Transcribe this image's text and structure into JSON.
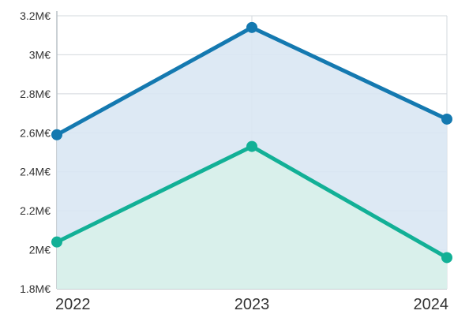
{
  "chart_data": {
    "type": "area",
    "title": "",
    "xlabel": "",
    "ylabel": "",
    "categories": [
      "2022",
      "2023",
      "2024"
    ],
    "ylim": [
      1.8,
      3.2
    ],
    "yticks": [
      {
        "value": 1.8,
        "label": "1.8M€"
      },
      {
        "value": 2.0,
        "label": "2M€"
      },
      {
        "value": 2.2,
        "label": "2.2M€"
      },
      {
        "value": 2.4,
        "label": "2.4M€"
      },
      {
        "value": 2.6,
        "label": "2.6M€"
      },
      {
        "value": 2.8,
        "label": "2.8M€"
      },
      {
        "value": 3.0,
        "label": "3M€"
      },
      {
        "value": 3.2,
        "label": "3.2M€"
      }
    ],
    "grid": true,
    "legend": "none",
    "series": [
      {
        "key": "blue",
        "values": [
          2.59,
          3.14,
          2.67
        ],
        "color": "#1479b0",
        "fill": "#d9e7f3"
      },
      {
        "key": "teal",
        "values": [
          2.04,
          2.53,
          1.96
        ],
        "color": "#12b096",
        "fill": "#d8f1ea"
      }
    ]
  }
}
